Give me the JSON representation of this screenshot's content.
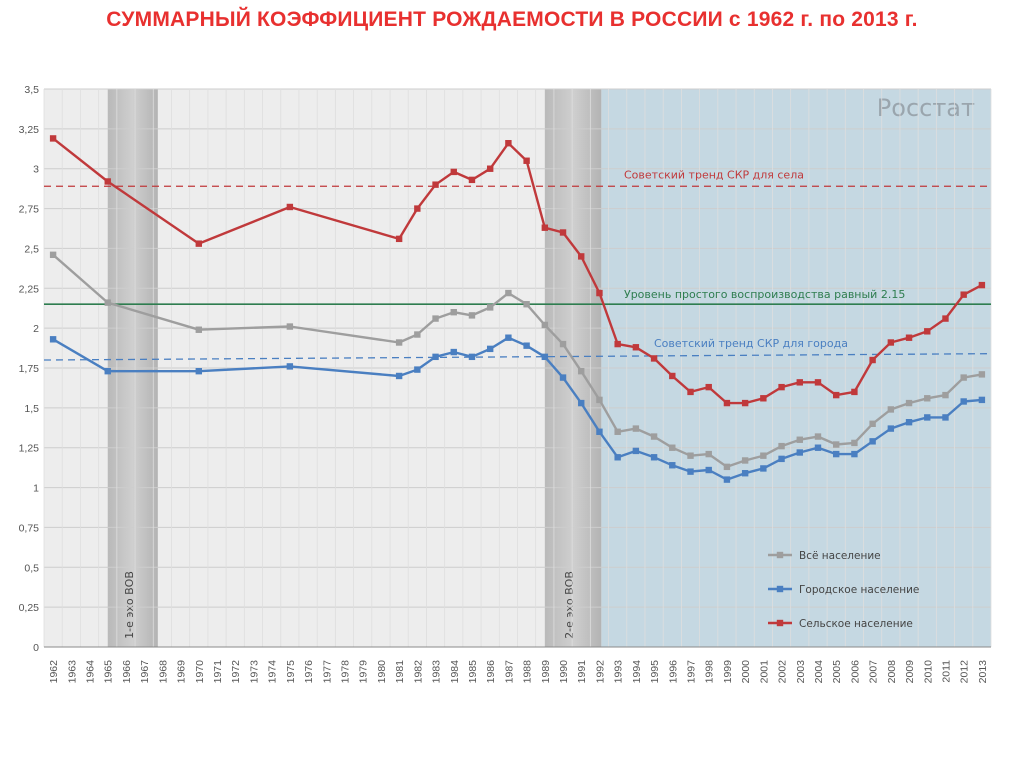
{
  "title": "СУММАРНЫЙ КОЭФФИЦИЕНТ РОЖДАЕМОСТИ В РОССИИ с 1962 г. по 2013 г.",
  "watermark": "Росстат",
  "colors": {
    "title": "#e8302f",
    "total": "#9e9e9e",
    "urban": "#4a7fc1",
    "rural": "#c0393b",
    "green_line": "#2e7d4f",
    "shaded_band": "#c4c4c4",
    "recent_bg": "#c5d8e2",
    "plot_bg": "#ededed"
  },
  "chart_data": {
    "type": "line",
    "x": [
      "1962",
      "1963",
      "1964",
      "1965",
      "1966",
      "1967",
      "1968",
      "1969",
      "1970",
      "1971",
      "1972",
      "1973",
      "1974",
      "1975",
      "1976",
      "1977",
      "1978",
      "1979",
      "1980",
      "1981",
      "1982",
      "1983",
      "1984",
      "1985",
      "1986",
      "1987",
      "1988",
      "1989",
      "1990",
      "1991",
      "1992",
      "1993",
      "1994",
      "1995",
      "1996",
      "1997",
      "1998",
      "1999",
      "2000",
      "2001",
      "2002",
      "2003",
      "2004",
      "2005",
      "2006",
      "2007",
      "2008",
      "2009",
      "2010",
      "2011",
      "2012",
      "2013"
    ],
    "ylim": [
      0,
      3.5
    ],
    "yticks": [
      "0",
      "0,25",
      "0,5",
      "0,75",
      "1",
      "1,25",
      "1,5",
      "1,75",
      "2",
      "2,25",
      "2,5",
      "2,75",
      "3",
      "3,25",
      "3,5"
    ],
    "grid": true,
    "legend_position": "bottom-right",
    "series": [
      {
        "name": "Всё население",
        "color": "#9e9e9e",
        "points": [
          [
            1962,
            2.46
          ],
          [
            1965,
            2.16
          ],
          [
            1970,
            1.99
          ],
          [
            1975,
            2.01
          ],
          [
            1981,
            1.91
          ],
          [
            1982,
            1.96
          ],
          [
            1983,
            2.06
          ],
          [
            1984,
            2.1
          ],
          [
            1985,
            2.08
          ],
          [
            1986,
            2.13
          ],
          [
            1987,
            2.22
          ],
          [
            1988,
            2.15
          ],
          [
            1989,
            2.02
          ],
          [
            1990,
            1.9
          ],
          [
            1991,
            1.73
          ],
          [
            1992,
            1.55
          ],
          [
            1993,
            1.35
          ],
          [
            1994,
            1.37
          ],
          [
            1995,
            1.32
          ],
          [
            1996,
            1.25
          ],
          [
            1997,
            1.2
          ],
          [
            1998,
            1.21
          ],
          [
            1999,
            1.13
          ],
          [
            2000,
            1.17
          ],
          [
            2001,
            1.2
          ],
          [
            2002,
            1.26
          ],
          [
            2003,
            1.3
          ],
          [
            2004,
            1.32
          ],
          [
            2005,
            1.27
          ],
          [
            2006,
            1.28
          ],
          [
            2007,
            1.4
          ],
          [
            2008,
            1.49
          ],
          [
            2009,
            1.53
          ],
          [
            2010,
            1.56
          ],
          [
            2011,
            1.58
          ],
          [
            2012,
            1.69
          ],
          [
            2013,
            1.71
          ]
        ]
      },
      {
        "name": "Городское население",
        "color": "#4a7fc1",
        "points": [
          [
            1962,
            1.93
          ],
          [
            1965,
            1.73
          ],
          [
            1970,
            1.73
          ],
          [
            1975,
            1.76
          ],
          [
            1981,
            1.7
          ],
          [
            1982,
            1.74
          ],
          [
            1983,
            1.82
          ],
          [
            1984,
            1.85
          ],
          [
            1985,
            1.82
          ],
          [
            1986,
            1.87
          ],
          [
            1987,
            1.94
          ],
          [
            1988,
            1.89
          ],
          [
            1989,
            1.82
          ],
          [
            1990,
            1.69
          ],
          [
            1991,
            1.53
          ],
          [
            1992,
            1.35
          ],
          [
            1993,
            1.19
          ],
          [
            1994,
            1.23
          ],
          [
            1995,
            1.19
          ],
          [
            1996,
            1.14
          ],
          [
            1997,
            1.1
          ],
          [
            1998,
            1.11
          ],
          [
            1999,
            1.05
          ],
          [
            2000,
            1.09
          ],
          [
            2001,
            1.12
          ],
          [
            2002,
            1.18
          ],
          [
            2003,
            1.22
          ],
          [
            2004,
            1.25
          ],
          [
            2005,
            1.21
          ],
          [
            2006,
            1.21
          ],
          [
            2007,
            1.29
          ],
          [
            2008,
            1.37
          ],
          [
            2009,
            1.41
          ],
          [
            2010,
            1.44
          ],
          [
            2011,
            1.44
          ],
          [
            2012,
            1.54
          ],
          [
            2013,
            1.55
          ]
        ]
      },
      {
        "name": "Сельское население",
        "color": "#c0393b",
        "points": [
          [
            1962,
            3.19
          ],
          [
            1965,
            2.92
          ],
          [
            1970,
            2.53
          ],
          [
            1975,
            2.76
          ],
          [
            1981,
            2.56
          ],
          [
            1982,
            2.75
          ],
          [
            1983,
            2.9
          ],
          [
            1984,
            2.98
          ],
          [
            1985,
            2.93
          ],
          [
            1986,
            3.0
          ],
          [
            1987,
            3.16
          ],
          [
            1988,
            3.05
          ],
          [
            1989,
            2.63
          ],
          [
            1990,
            2.6
          ],
          [
            1991,
            2.45
          ],
          [
            1992,
            2.22
          ],
          [
            1993,
            1.9
          ],
          [
            1994,
            1.88
          ],
          [
            1995,
            1.81
          ],
          [
            1996,
            1.7
          ],
          [
            1997,
            1.6
          ],
          [
            1998,
            1.63
          ],
          [
            1999,
            1.53
          ],
          [
            2000,
            1.53
          ],
          [
            2001,
            1.56
          ],
          [
            2002,
            1.63
          ],
          [
            2003,
            1.66
          ],
          [
            2004,
            1.66
          ],
          [
            2005,
            1.58
          ],
          [
            2006,
            1.6
          ],
          [
            2007,
            1.8
          ],
          [
            2008,
            1.91
          ],
          [
            2009,
            1.94
          ],
          [
            2010,
            1.98
          ],
          [
            2011,
            2.06
          ],
          [
            2012,
            2.21
          ],
          [
            2013,
            2.27
          ]
        ]
      }
    ],
    "reference_lines": [
      {
        "label": "Советский тренд СКР для села",
        "y_start": 2.89,
        "y_end": 2.89,
        "style": "dashed",
        "color": "#c0393b"
      },
      {
        "label": "Уровень простого воспроизводства равный 2.15",
        "y_start": 2.15,
        "y_end": 2.15,
        "style": "solid",
        "color": "#2e7d4f"
      },
      {
        "label": "Советский тренд СКР для города",
        "y_start": 1.8,
        "y_end": 1.84,
        "style": "dashed",
        "color": "#4a7fc1"
      }
    ],
    "shaded_bands": [
      {
        "label": "1-е эхо ВОВ",
        "from": "1965",
        "to": "1968"
      },
      {
        "label": "2-е эхо ВОВ",
        "from": "1989",
        "to": "1992"
      }
    ],
    "highlight_region": {
      "from": "1992",
      "to": "2013"
    }
  }
}
